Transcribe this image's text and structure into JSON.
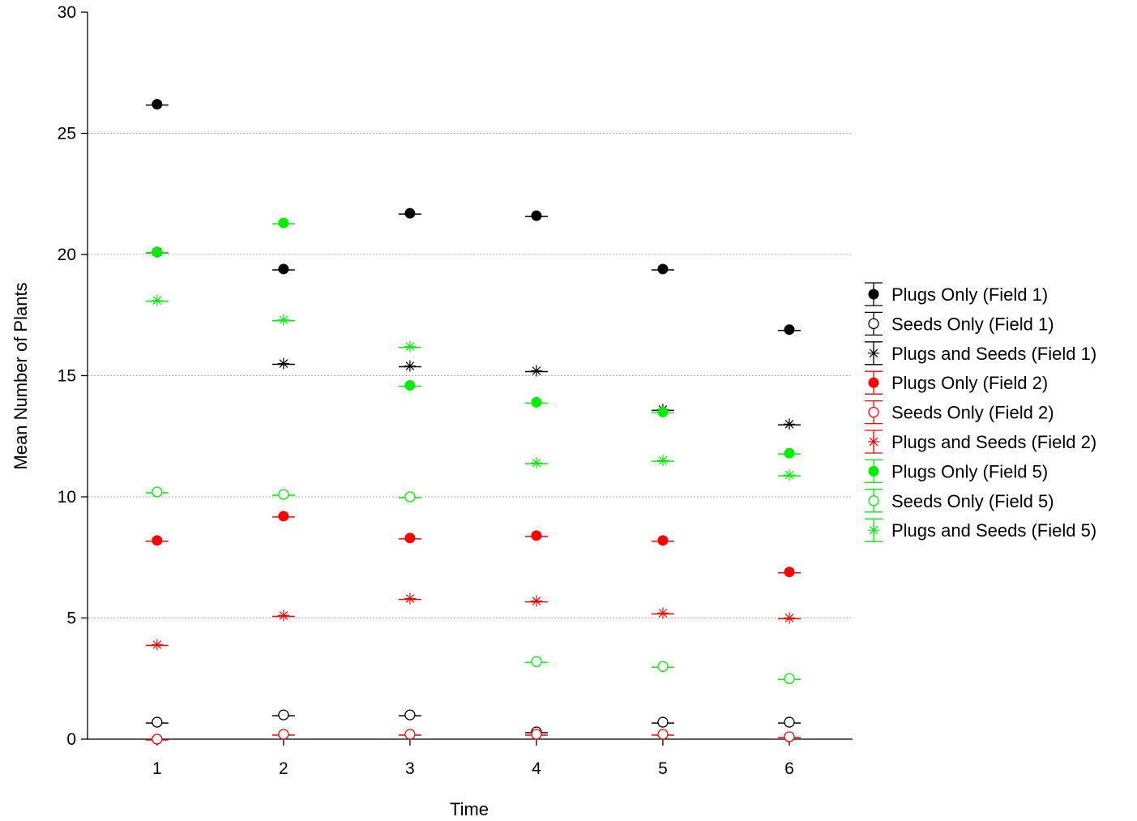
{
  "chart_data": {
    "type": "scatter",
    "title": "",
    "xlabel": "Time",
    "ylabel": "Mean Number of Plants",
    "x": [
      1,
      2,
      3,
      4,
      5,
      6
    ],
    "xticks": [
      "1",
      "2",
      "3",
      "4",
      "5",
      "6"
    ],
    "xlim": [
      0.45,
      6.5
    ],
    "ylim": [
      0,
      30
    ],
    "yticks": [
      "0",
      "5",
      "10",
      "15",
      "20",
      "25",
      "30"
    ],
    "grid": "horizontal-dotted",
    "legend_position": "right",
    "series": [
      {
        "name": "Plugs Only (Field 1)",
        "color": "#000000",
        "marker": "filled-circle",
        "values": [
          26.2,
          19.4,
          21.7,
          21.6,
          19.4,
          16.9
        ]
      },
      {
        "name": "Seeds Only (Field 1)",
        "color": "#000000",
        "marker": "open-circle",
        "values": [
          0.7,
          1.0,
          1.0,
          0.3,
          0.7,
          0.7
        ]
      },
      {
        "name": "Plugs and Seeds (Field 1)",
        "color": "#000000",
        "marker": "asterisk",
        "values": [
          20.1,
          15.5,
          15.4,
          15.2,
          13.6,
          13.0
        ]
      },
      {
        "name": "Plugs Only (Field 2)",
        "color": "#ff0000",
        "marker": "filled-circle",
        "values": [
          8.2,
          9.2,
          8.3,
          8.4,
          8.2,
          6.9
        ]
      },
      {
        "name": "Seeds Only (Field 2)",
        "color": "#ff0000",
        "marker": "open-circle",
        "values": [
          0.0,
          0.2,
          0.2,
          0.2,
          0.2,
          0.1
        ]
      },
      {
        "name": "Plugs and Seeds (Field 2)",
        "color": "#ff0000",
        "marker": "asterisk",
        "values": [
          3.9,
          5.1,
          5.8,
          5.7,
          5.2,
          5.0
        ]
      },
      {
        "name": "Plugs Only (Field 5)",
        "color": "#00ee00",
        "marker": "filled-circle",
        "values": [
          20.1,
          21.3,
          14.6,
          13.9,
          13.5,
          11.8
        ]
      },
      {
        "name": "Seeds Only (Field 5)",
        "color": "#00ee00",
        "marker": "open-circle",
        "values": [
          10.2,
          10.1,
          10.0,
          3.2,
          3.0,
          2.5
        ]
      },
      {
        "name": "Plugs and Seeds (Field 5)",
        "color": "#00ee00",
        "marker": "asterisk",
        "values": [
          18.1,
          17.3,
          16.2,
          11.4,
          11.5,
          10.9
        ]
      }
    ]
  }
}
